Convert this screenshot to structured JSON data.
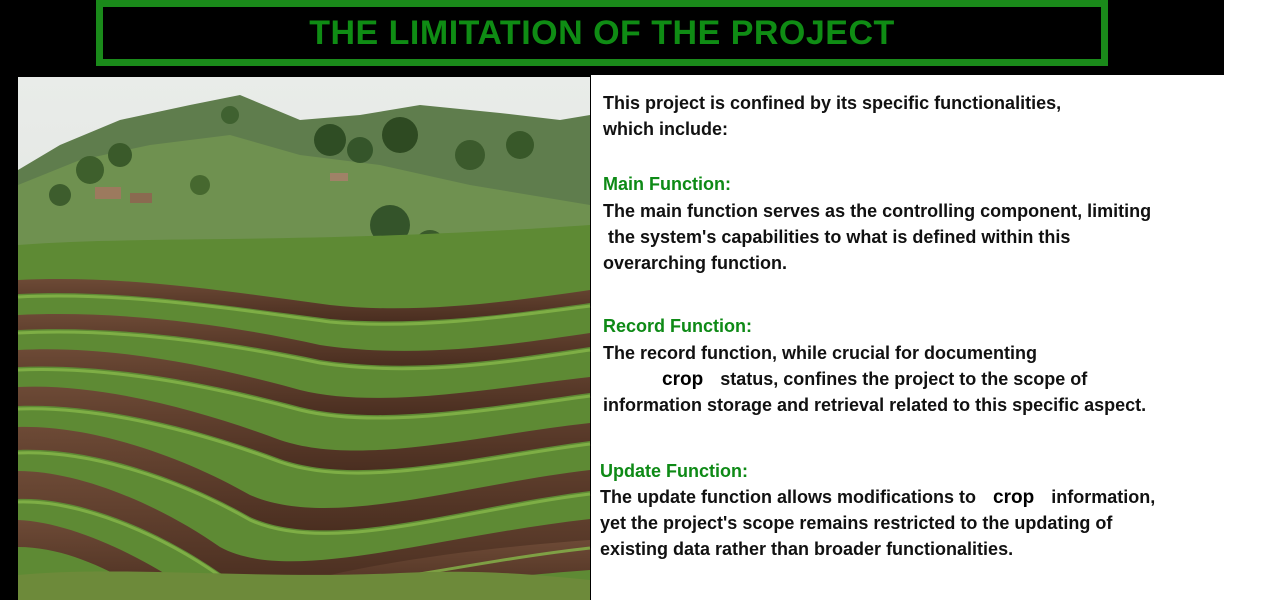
{
  "title": "THE LIMITATION OF THE PROJECT",
  "intro": {
    "line1": "This project is confined by its specific functionalities,",
    "line2": "which include:"
  },
  "sections": [
    {
      "heading": "Main Function:",
      "lines": [
        "The main function serves as the controlling component, limiting",
        " the system's capabilities to what is defined within this",
        "overarching function."
      ]
    },
    {
      "heading": "Record Function:",
      "lines": [
        "The record function, while crucial for documenting",
        "status, confines the project to the scope of",
        "information storage and retrieval related to this specific aspect."
      ],
      "inserted_word": "crop"
    },
    {
      "heading": "Update Function:",
      "line1_before": "The update function allows modifications to",
      "inserted_word": "crop",
      "line1_after": "information,",
      "lines": [
        "yet the project's scope remains restricted to the updating of",
        "existing data rather than broader functionalities."
      ]
    }
  ],
  "colors": {
    "header_bg": "#000000",
    "title_green": "#0f8c14",
    "heading_green": "#0e8a16",
    "body_text": "#111111"
  }
}
